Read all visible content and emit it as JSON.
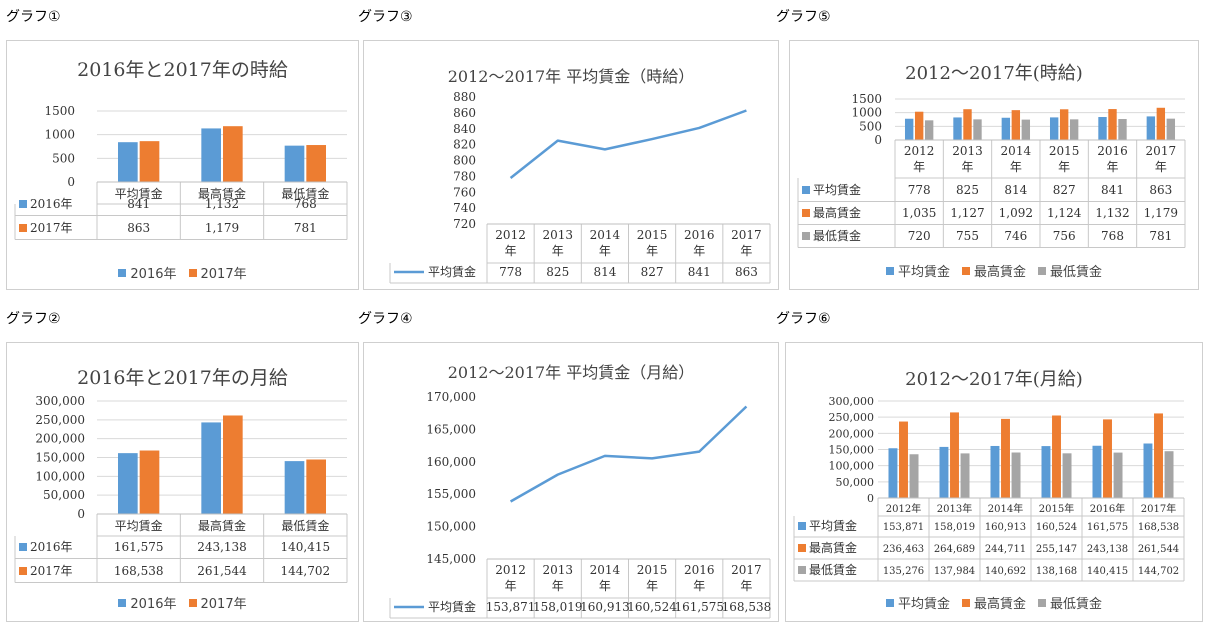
{
  "graph_labels": [
    "グラフ①",
    "グラフ③",
    "グラフ⑤",
    "グラフ②",
    "グラフ④",
    "グラフ⑥"
  ],
  "colors": {
    "blue": "#5b9bd5",
    "orange": "#ed7d31",
    "gray": "#a5a5a5",
    "grid": "#d9d9d9"
  },
  "chart_data": [
    {
      "id": "g1",
      "type": "bar",
      "title": "2016年と2017年の時給",
      "categories": [
        "平均賃金",
        "最高賃金",
        "最低賃金"
      ],
      "series": [
        {
          "name": "2016年",
          "values": [
            841,
            1132,
            768
          ],
          "labels": [
            "841",
            "1,132",
            "768"
          ]
        },
        {
          "name": "2017年",
          "values": [
            863,
            1179,
            781
          ],
          "labels": [
            "863",
            "1,179",
            "781"
          ]
        }
      ],
      "ylim": [
        0,
        1500
      ],
      "yticks": [
        "1500",
        "1000",
        "500",
        "0"
      ],
      "legend_position": "bottom",
      "grid": true,
      "data_table": true
    },
    {
      "id": "g2",
      "type": "bar",
      "title": "2016年と2017年の月給",
      "categories": [
        "平均賃金",
        "最高賃金",
        "最低賃金"
      ],
      "series": [
        {
          "name": "2016年",
          "values": [
            161575,
            243138,
            140415
          ],
          "labels": [
            "161,575",
            "243,138",
            "140,415"
          ]
        },
        {
          "name": "2017年",
          "values": [
            168538,
            261544,
            144702
          ],
          "labels": [
            "168,538",
            "261,544",
            "144,702"
          ]
        }
      ],
      "ylim": [
        0,
        300000
      ],
      "yticks": [
        "300,000",
        "250,000",
        "200,000",
        "150,000",
        "100,000",
        "50,000",
        "0"
      ],
      "legend_position": "bottom",
      "grid": true,
      "data_table": true
    },
    {
      "id": "g3",
      "type": "line",
      "title": "2012～2017年 平均賃金（時給）",
      "categories": [
        "2012年",
        "2013年",
        "2014年",
        "2015年",
        "2016年",
        "2017年"
      ],
      "series": [
        {
          "name": "平均賃金",
          "values": [
            778,
            825,
            814,
            827,
            841,
            863
          ],
          "labels": [
            "778",
            "825",
            "814",
            "827",
            "841",
            "863"
          ]
        }
      ],
      "ylim": [
        720,
        880
      ],
      "yticks": [
        "880",
        "860",
        "840",
        "820",
        "800",
        "780",
        "760",
        "740",
        "720"
      ],
      "grid": false,
      "data_table": true
    },
    {
      "id": "g4",
      "type": "line",
      "title": "2012～2017年 平均賃金（月給）",
      "categories": [
        "2012年",
        "2013年",
        "2014年",
        "2015年",
        "2016年",
        "2017年"
      ],
      "series": [
        {
          "name": "平均賃金",
          "values": [
            153871,
            158019,
            160913,
            160524,
            161575,
            168538
          ],
          "labels": [
            "153,871",
            "158,019",
            "160,913",
            "160,524",
            "161,575",
            "168,538"
          ]
        }
      ],
      "ylim": [
        145000,
        170000
      ],
      "yticks": [
        "170,000",
        "165,000",
        "160,000",
        "155,000",
        "150,000",
        "145,000"
      ],
      "grid": false,
      "data_table": true
    },
    {
      "id": "g5",
      "type": "bar",
      "title": "2012～2017年(時給)",
      "categories": [
        "2012年",
        "2013年",
        "2014年",
        "2015年",
        "2016年",
        "2017年"
      ],
      "series": [
        {
          "name": "平均賃金",
          "values": [
            778,
            825,
            814,
            827,
            841,
            863
          ],
          "labels": [
            "778",
            "825",
            "814",
            "827",
            "841",
            "863"
          ]
        },
        {
          "name": "最高賃金",
          "values": [
            1035,
            1127,
            1092,
            1124,
            1132,
            1179
          ],
          "labels": [
            "1,035",
            "1,127",
            "1,092",
            "1,124",
            "1,132",
            "1,179"
          ]
        },
        {
          "name": "最低賃金",
          "values": [
            720,
            755,
            746,
            756,
            768,
            781
          ],
          "labels": [
            "720",
            "755",
            "746",
            "756",
            "768",
            "781"
          ]
        }
      ],
      "ylim": [
        0,
        1500
      ],
      "yticks": [
        "1500",
        "1000",
        "500",
        "0"
      ],
      "legend_position": "bottom",
      "grid": true,
      "data_table": true
    },
    {
      "id": "g6",
      "type": "bar",
      "title": "2012～2017年(月給)",
      "categories": [
        "2012年",
        "2013年",
        "2014年",
        "2015年",
        "2016年",
        "2017年"
      ],
      "series": [
        {
          "name": "平均賃金",
          "values": [
            153871,
            158019,
            160913,
            160524,
            161575,
            168538
          ],
          "labels": [
            "153,871",
            "158,019",
            "160,913",
            "160,524",
            "161,575",
            "168,538"
          ]
        },
        {
          "name": "最高賃金",
          "values": [
            236463,
            264689,
            244711,
            255147,
            243138,
            261544
          ],
          "labels": [
            "236,463",
            "264,689",
            "244,711",
            "255,147",
            "243,138",
            "261,544"
          ]
        },
        {
          "name": "最低賃金",
          "values": [
            135276,
            137984,
            140692,
            138168,
            140415,
            144702
          ],
          "labels": [
            "135,276",
            "137,984",
            "140,692",
            "138,168",
            "140,415",
            "144,702"
          ]
        }
      ],
      "ylim": [
        0,
        300000
      ],
      "yticks": [
        "300,000",
        "250,000",
        "200,000",
        "150,000",
        "100,000",
        "50,000",
        "0"
      ],
      "legend_position": "bottom",
      "grid": true,
      "data_table": true
    }
  ]
}
